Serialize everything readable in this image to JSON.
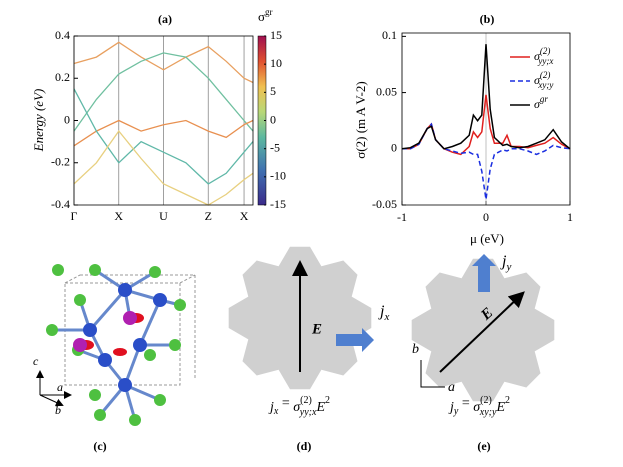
{
  "chart_data": [
    {
      "type": "band",
      "title": "(a)",
      "ylabel": "Energy (eV)",
      "xlim": [
        0,
        4
      ],
      "xticks": [
        {
          "value": 0,
          "label": "Γ"
        },
        {
          "value": 1,
          "label": "X"
        },
        {
          "value": 2,
          "label": "U"
        },
        {
          "value": 3,
          "label": "Z"
        },
        {
          "value": 3.8,
          "label": "X"
        }
      ],
      "ylim": [
        -0.4,
        0.4
      ],
      "yticks": [
        0.4,
        0.2,
        0,
        -0.2,
        -0.4
      ],
      "colorbar": {
        "label": "σ",
        "label_sup": "gr",
        "lim": [
          -15,
          15
        ],
        "ticks": [
          15,
          10,
          5,
          0,
          -5,
          -10,
          -15
        ]
      },
      "x": [
        0,
        0.5,
        1,
        1.5,
        2,
        2.5,
        3,
        3.4,
        3.8,
        4
      ],
      "series": [
        {
          "color": "#e8a060",
          "values": [
            0.27,
            0.3,
            0.37,
            0.3,
            0.24,
            0.3,
            0.35,
            0.28,
            0.2,
            0.18
          ]
        },
        {
          "color": "#70c0a0",
          "values": [
            -0.05,
            0.1,
            0.22,
            0.28,
            0.32,
            0.3,
            0.2,
            0.1,
            0.0,
            -0.05
          ]
        },
        {
          "color": "#e89050",
          "values": [
            -0.12,
            -0.05,
            0.0,
            -0.05,
            -0.02,
            0.0,
            -0.05,
            -0.08,
            -0.02,
            0.0
          ]
        },
        {
          "color": "#60b8a8",
          "values": [
            0.15,
            -0.05,
            -0.2,
            -0.1,
            -0.15,
            -0.2,
            -0.3,
            -0.25,
            -0.15,
            -0.1
          ]
        },
        {
          "color": "#e8d080",
          "values": [
            -0.3,
            -0.2,
            -0.05,
            -0.18,
            -0.3,
            -0.35,
            -0.4,
            -0.35,
            -0.28,
            -0.25
          ]
        }
      ]
    },
    {
      "type": "line",
      "title": "(b)",
      "xlabel": "μ (eV)",
      "ylabel": "σ(2) (m A V-2)",
      "xlim": [
        -1,
        1
      ],
      "xticks": [
        -1,
        0,
        1
      ],
      "ylim": [
        -0.05,
        0.103
      ],
      "yticks": [
        -0.05,
        0,
        0.05,
        0.1
      ],
      "x": [
        -1,
        -0.9,
        -0.8,
        -0.7,
        -0.65,
        -0.6,
        -0.5,
        -0.4,
        -0.3,
        -0.2,
        -0.15,
        -0.1,
        -0.05,
        0,
        0.05,
        0.1,
        0.2,
        0.25,
        0.3,
        0.4,
        0.5,
        0.6,
        0.7,
        0.8,
        0.9,
        1
      ],
      "series": [
        {
          "name": "σ",
          "name_sup": "(2)",
          "name_sub": "yy;x",
          "color": "#e0201e",
          "dash": false,
          "values": [
            0,
            0,
            0.004,
            0.018,
            0.022,
            0.008,
            0,
            -0.003,
            -0.005,
            0.002,
            0.015,
            0.01,
            0.015,
            0.048,
            0.018,
            0.005,
            0.005,
            0.012,
            0.002,
            0.002,
            0.001,
            0.003,
            0.005,
            0.01,
            0.004,
            0
          ]
        },
        {
          "name": "σ",
          "name_sup": "(2)",
          "name_sub": "xy;y",
          "color": "#1a2ee0",
          "dash": true,
          "values": [
            0,
            0,
            0.004,
            0.018,
            0.022,
            0.008,
            0,
            -0.002,
            -0.004,
            -0.003,
            -0.005,
            -0.005,
            -0.02,
            -0.045,
            -0.018,
            -0.005,
            -0.001,
            -0.002,
            0,
            0,
            -0.002,
            -0.005,
            -0.002,
            0.003,
            0.001,
            0
          ]
        },
        {
          "name": "σ",
          "name_sup": "gr",
          "name_sub": "",
          "color": "#000000",
          "dash": false,
          "values": [
            0,
            0.001,
            0.005,
            0.018,
            0.02,
            0.008,
            0,
            0.002,
            0.005,
            0.012,
            0.03,
            0.025,
            0.03,
            0.093,
            0.035,
            0.01,
            0.003,
            0.004,
            0.002,
            0.001,
            0.002,
            0.005,
            0.008,
            0.017,
            0.006,
            0
          ]
        }
      ]
    }
  ],
  "panel_c": {
    "label": "(c)",
    "axis_c": "c",
    "axis_a": "a",
    "axis_b": "b"
  },
  "panel_d": {
    "label": "(d)",
    "field": "E",
    "current": "j",
    "current_sub": "x",
    "equation": {
      "lhs": "j",
      "lhs_sub": "x",
      "rel": " = ",
      "sym": "σ",
      "sup": "(2)",
      "sub": "yy;x",
      "field": "E",
      "power": "2"
    }
  },
  "panel_e": {
    "label": "(e)",
    "field": "E",
    "current": "j",
    "current_sub": "y",
    "axis_b": "b",
    "axis_a": "a",
    "equation": {
      "lhs": "j",
      "lhs_sub": "y",
      "rel": " = ",
      "sym": "σ",
      "sup": "(2)",
      "sub": "xy;y",
      "field": "E",
      "power": "2"
    }
  }
}
